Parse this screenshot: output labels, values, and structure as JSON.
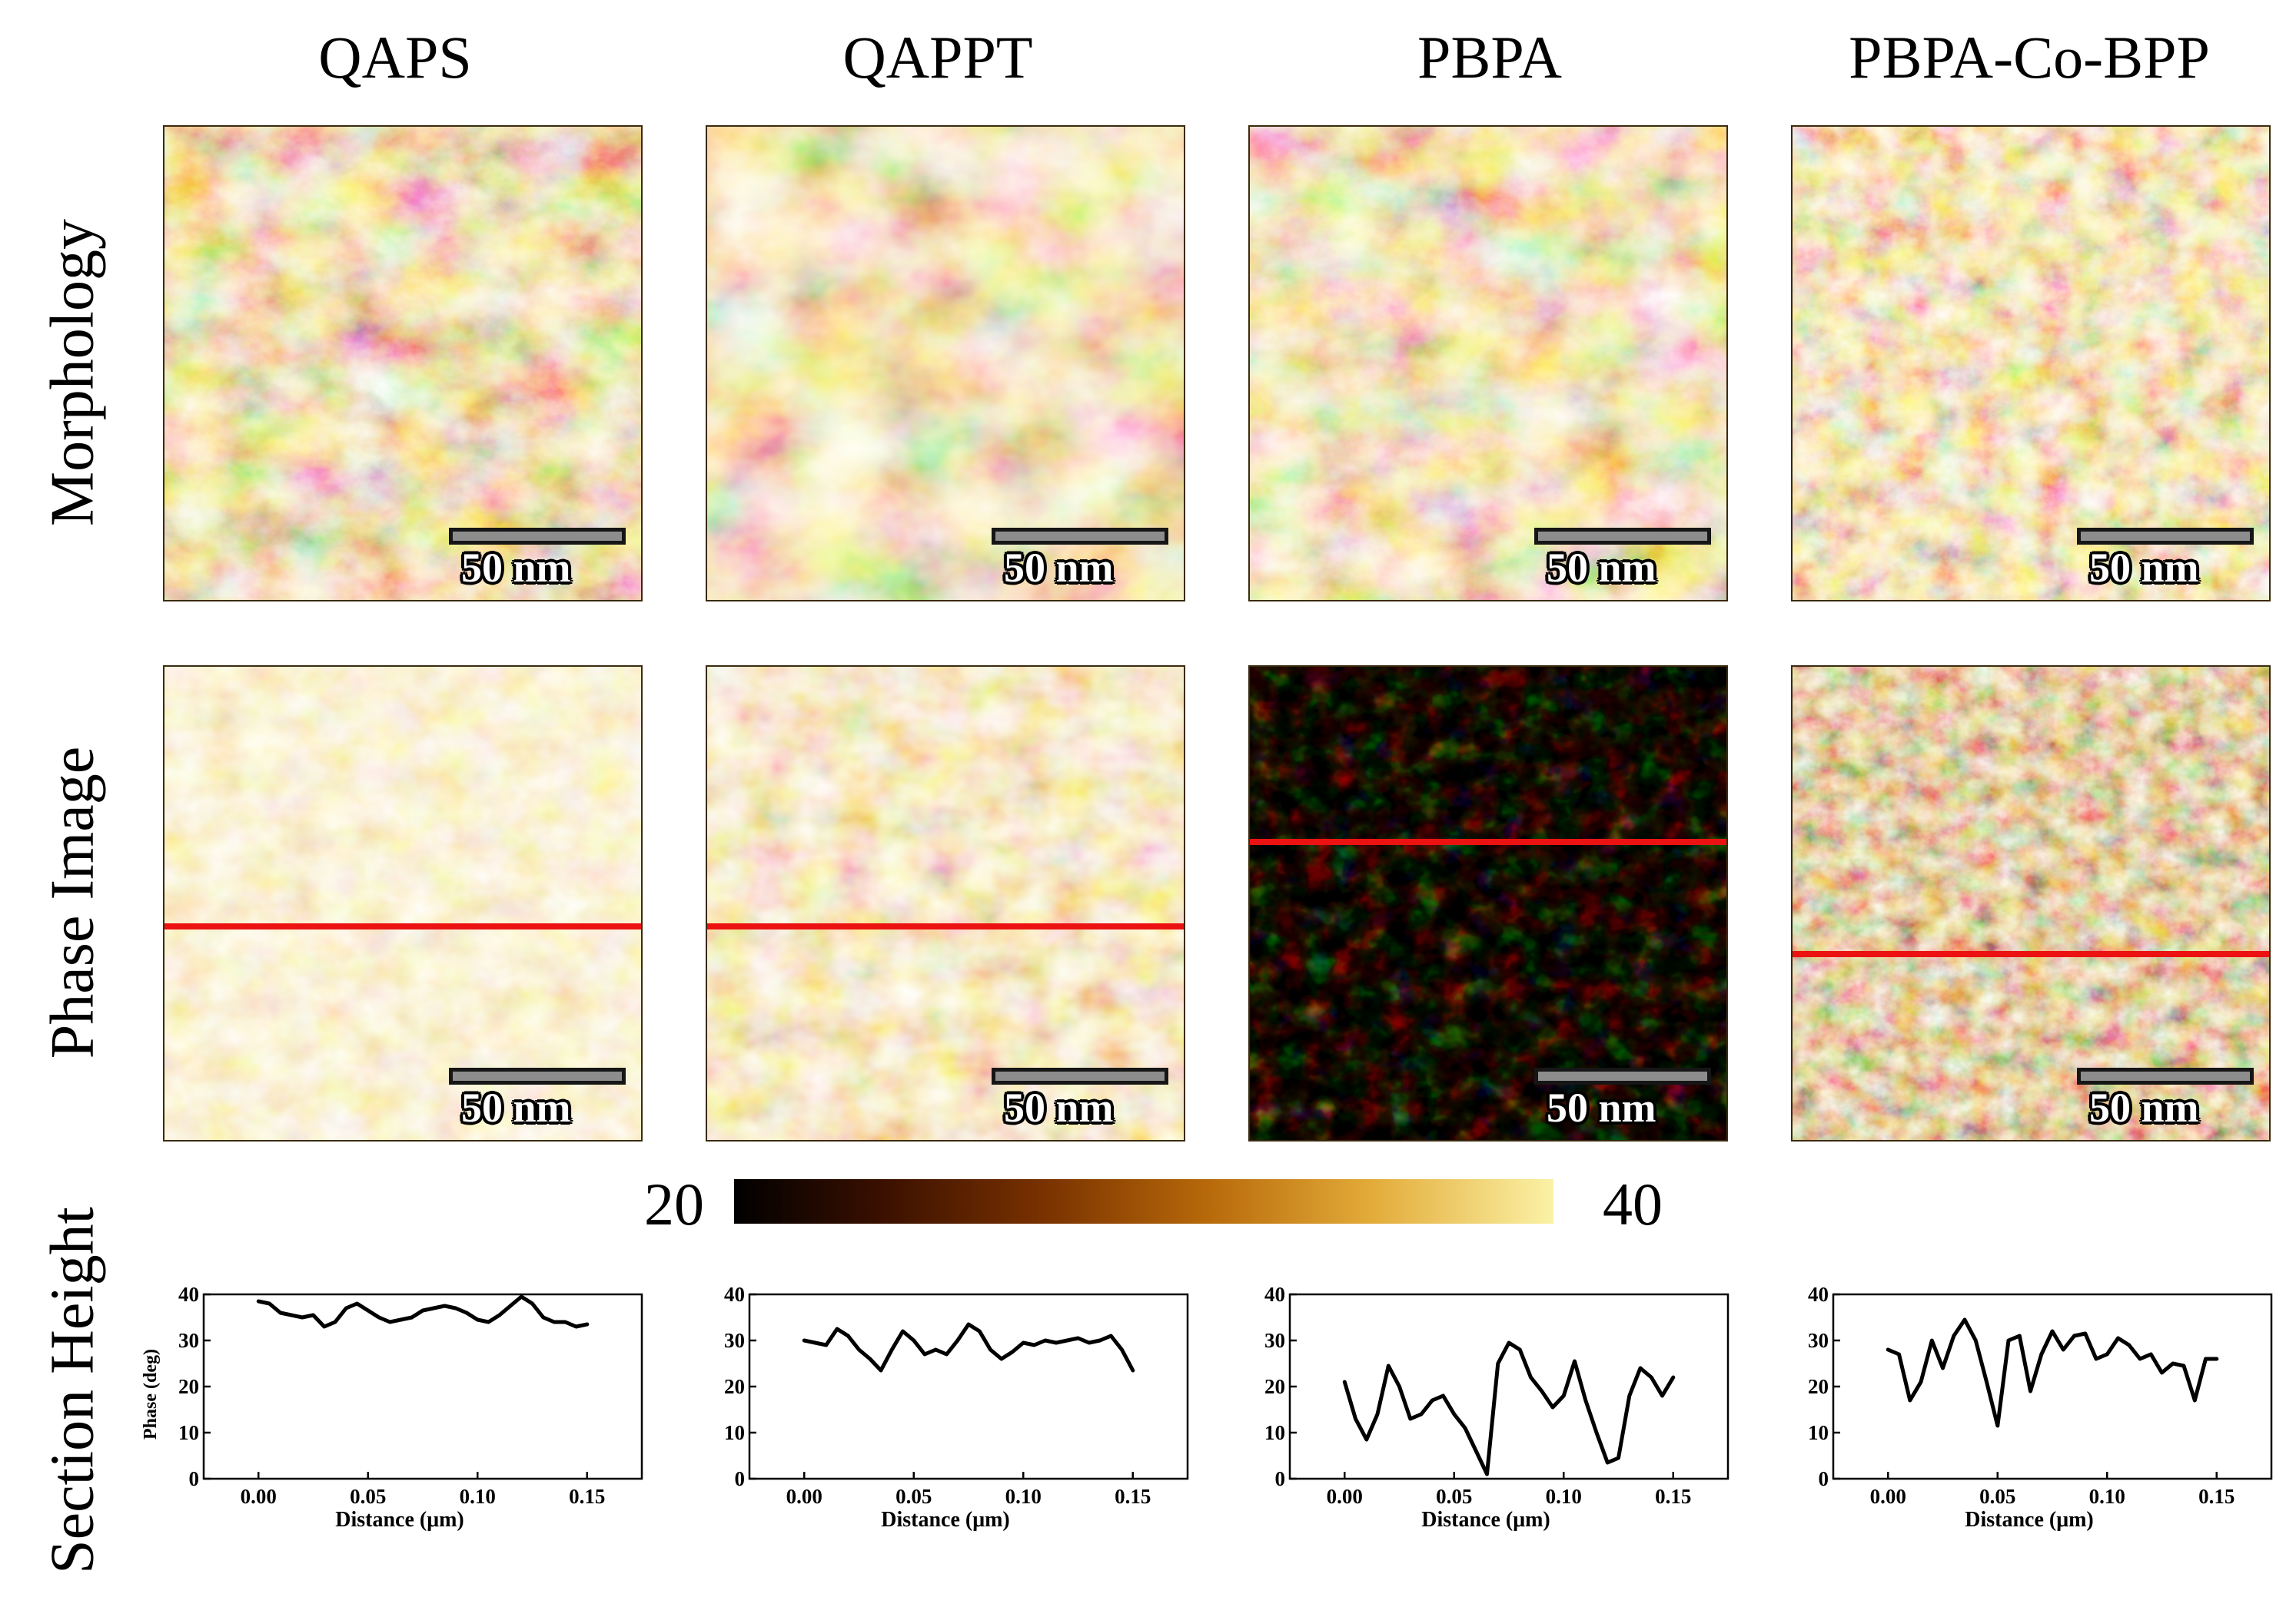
{
  "figure": {
    "columns": [
      "QAPS",
      "QAPPT",
      "PBPA",
      "PBPA-Co-BPP"
    ],
    "row_labels": {
      "morphology": "Morphology",
      "phase": "Phase Image",
      "section": "Section Height"
    },
    "scale_bar_label": "50 nm",
    "colorbar": {
      "min_label": "20",
      "max_label": "40"
    },
    "colors": {
      "red_line": "#ec1212",
      "trace": "#000000"
    }
  },
  "chart_data": [
    {
      "type": "line",
      "sample": "QAPS",
      "title": "",
      "xlabel": "Distance (μm)",
      "ylabel": "Phase (deg)",
      "xlim": [
        -0.025,
        0.175
      ],
      "ylim": [
        0,
        40
      ],
      "xticks": [
        "0.00",
        "0.05",
        "0.10",
        "0.15"
      ],
      "yticks": [
        "0",
        "10",
        "20",
        "30",
        "40"
      ],
      "x": [
        0,
        0.005,
        0.01,
        0.015,
        0.02,
        0.025,
        0.03,
        0.035,
        0.04,
        0.045,
        0.05,
        0.055,
        0.06,
        0.065,
        0.07,
        0.075,
        0.08,
        0.085,
        0.09,
        0.095,
        0.1,
        0.105,
        0.11,
        0.115,
        0.12,
        0.125,
        0.13,
        0.135,
        0.14,
        0.145,
        0.15
      ],
      "y": [
        38.5,
        38,
        36,
        35.5,
        35,
        35.5,
        33,
        34,
        37,
        38,
        36.5,
        35,
        34,
        34.5,
        35,
        36.5,
        37,
        37.5,
        37,
        36,
        34.5,
        34,
        35.5,
        37.5,
        39.5,
        38,
        35,
        34,
        34,
        33,
        33.5
      ]
    },
    {
      "type": "line",
      "sample": "QAPPT",
      "title": "",
      "xlabel": "Distance (μm)",
      "ylabel": "",
      "xlim": [
        -0.025,
        0.175
      ],
      "ylim": [
        0,
        40
      ],
      "xticks": [
        "0.00",
        "0.05",
        "0.10",
        "0.15"
      ],
      "yticks": [
        "0",
        "10",
        "20",
        "30",
        "40"
      ],
      "x": [
        0,
        0.005,
        0.01,
        0.015,
        0.02,
        0.025,
        0.03,
        0.035,
        0.04,
        0.045,
        0.05,
        0.055,
        0.06,
        0.065,
        0.07,
        0.075,
        0.08,
        0.085,
        0.09,
        0.095,
        0.1,
        0.105,
        0.11,
        0.115,
        0.12,
        0.125,
        0.13,
        0.135,
        0.14,
        0.145,
        0.15
      ],
      "y": [
        30,
        29.5,
        29,
        32.5,
        31,
        28,
        26,
        23.5,
        28,
        32,
        30,
        27,
        28,
        27,
        30,
        33.5,
        32,
        28,
        26,
        27.5,
        29.5,
        29,
        30,
        29.5,
        30,
        30.5,
        29.5,
        30,
        31,
        28,
        23.5
      ]
    },
    {
      "type": "line",
      "sample": "PBPA",
      "title": "",
      "xlabel": "Distance (μm)",
      "ylabel": "",
      "xlim": [
        -0.025,
        0.175
      ],
      "ylim": [
        0,
        40
      ],
      "xticks": [
        "0.00",
        "0.05",
        "0.10",
        "0.15"
      ],
      "yticks": [
        "0",
        "10",
        "20",
        "30",
        "40"
      ],
      "x": [
        0,
        0.005,
        0.01,
        0.015,
        0.02,
        0.025,
        0.03,
        0.035,
        0.04,
        0.045,
        0.05,
        0.055,
        0.06,
        0.065,
        0.07,
        0.075,
        0.08,
        0.085,
        0.09,
        0.095,
        0.1,
        0.105,
        0.11,
        0.115,
        0.12,
        0.125,
        0.13,
        0.135,
        0.14,
        0.145,
        0.15
      ],
      "y": [
        21,
        13,
        8.5,
        14,
        24.5,
        20,
        13,
        14,
        17,
        18,
        14,
        11,
        6,
        1,
        25,
        29.5,
        28,
        22,
        19,
        15.5,
        18,
        25.5,
        17,
        10,
        3.5,
        4.5,
        18,
        24,
        22,
        18,
        22
      ]
    },
    {
      "type": "line",
      "sample": "PBPA-Co-BPP",
      "title": "",
      "xlabel": "Distance (μm)",
      "ylabel": "",
      "xlim": [
        -0.025,
        0.175
      ],
      "ylim": [
        0,
        40
      ],
      "xticks": [
        "0.00",
        "0.05",
        "0.10",
        "0.15"
      ],
      "yticks": [
        "0",
        "10",
        "20",
        "30",
        "40"
      ],
      "x": [
        0,
        0.005,
        0.01,
        0.015,
        0.02,
        0.025,
        0.03,
        0.035,
        0.04,
        0.045,
        0.05,
        0.055,
        0.06,
        0.065,
        0.07,
        0.075,
        0.08,
        0.085,
        0.09,
        0.095,
        0.1,
        0.105,
        0.11,
        0.115,
        0.12,
        0.125,
        0.13,
        0.135,
        0.14,
        0.145,
        0.15
      ],
      "y": [
        28,
        27,
        17,
        21,
        30,
        24,
        31,
        34.5,
        30,
        21,
        11.5,
        30,
        31,
        19,
        27,
        32,
        28,
        31,
        31.5,
        26,
        27,
        30.5,
        29,
        26,
        27,
        23,
        25,
        24.5,
        17,
        26,
        26
      ]
    }
  ]
}
